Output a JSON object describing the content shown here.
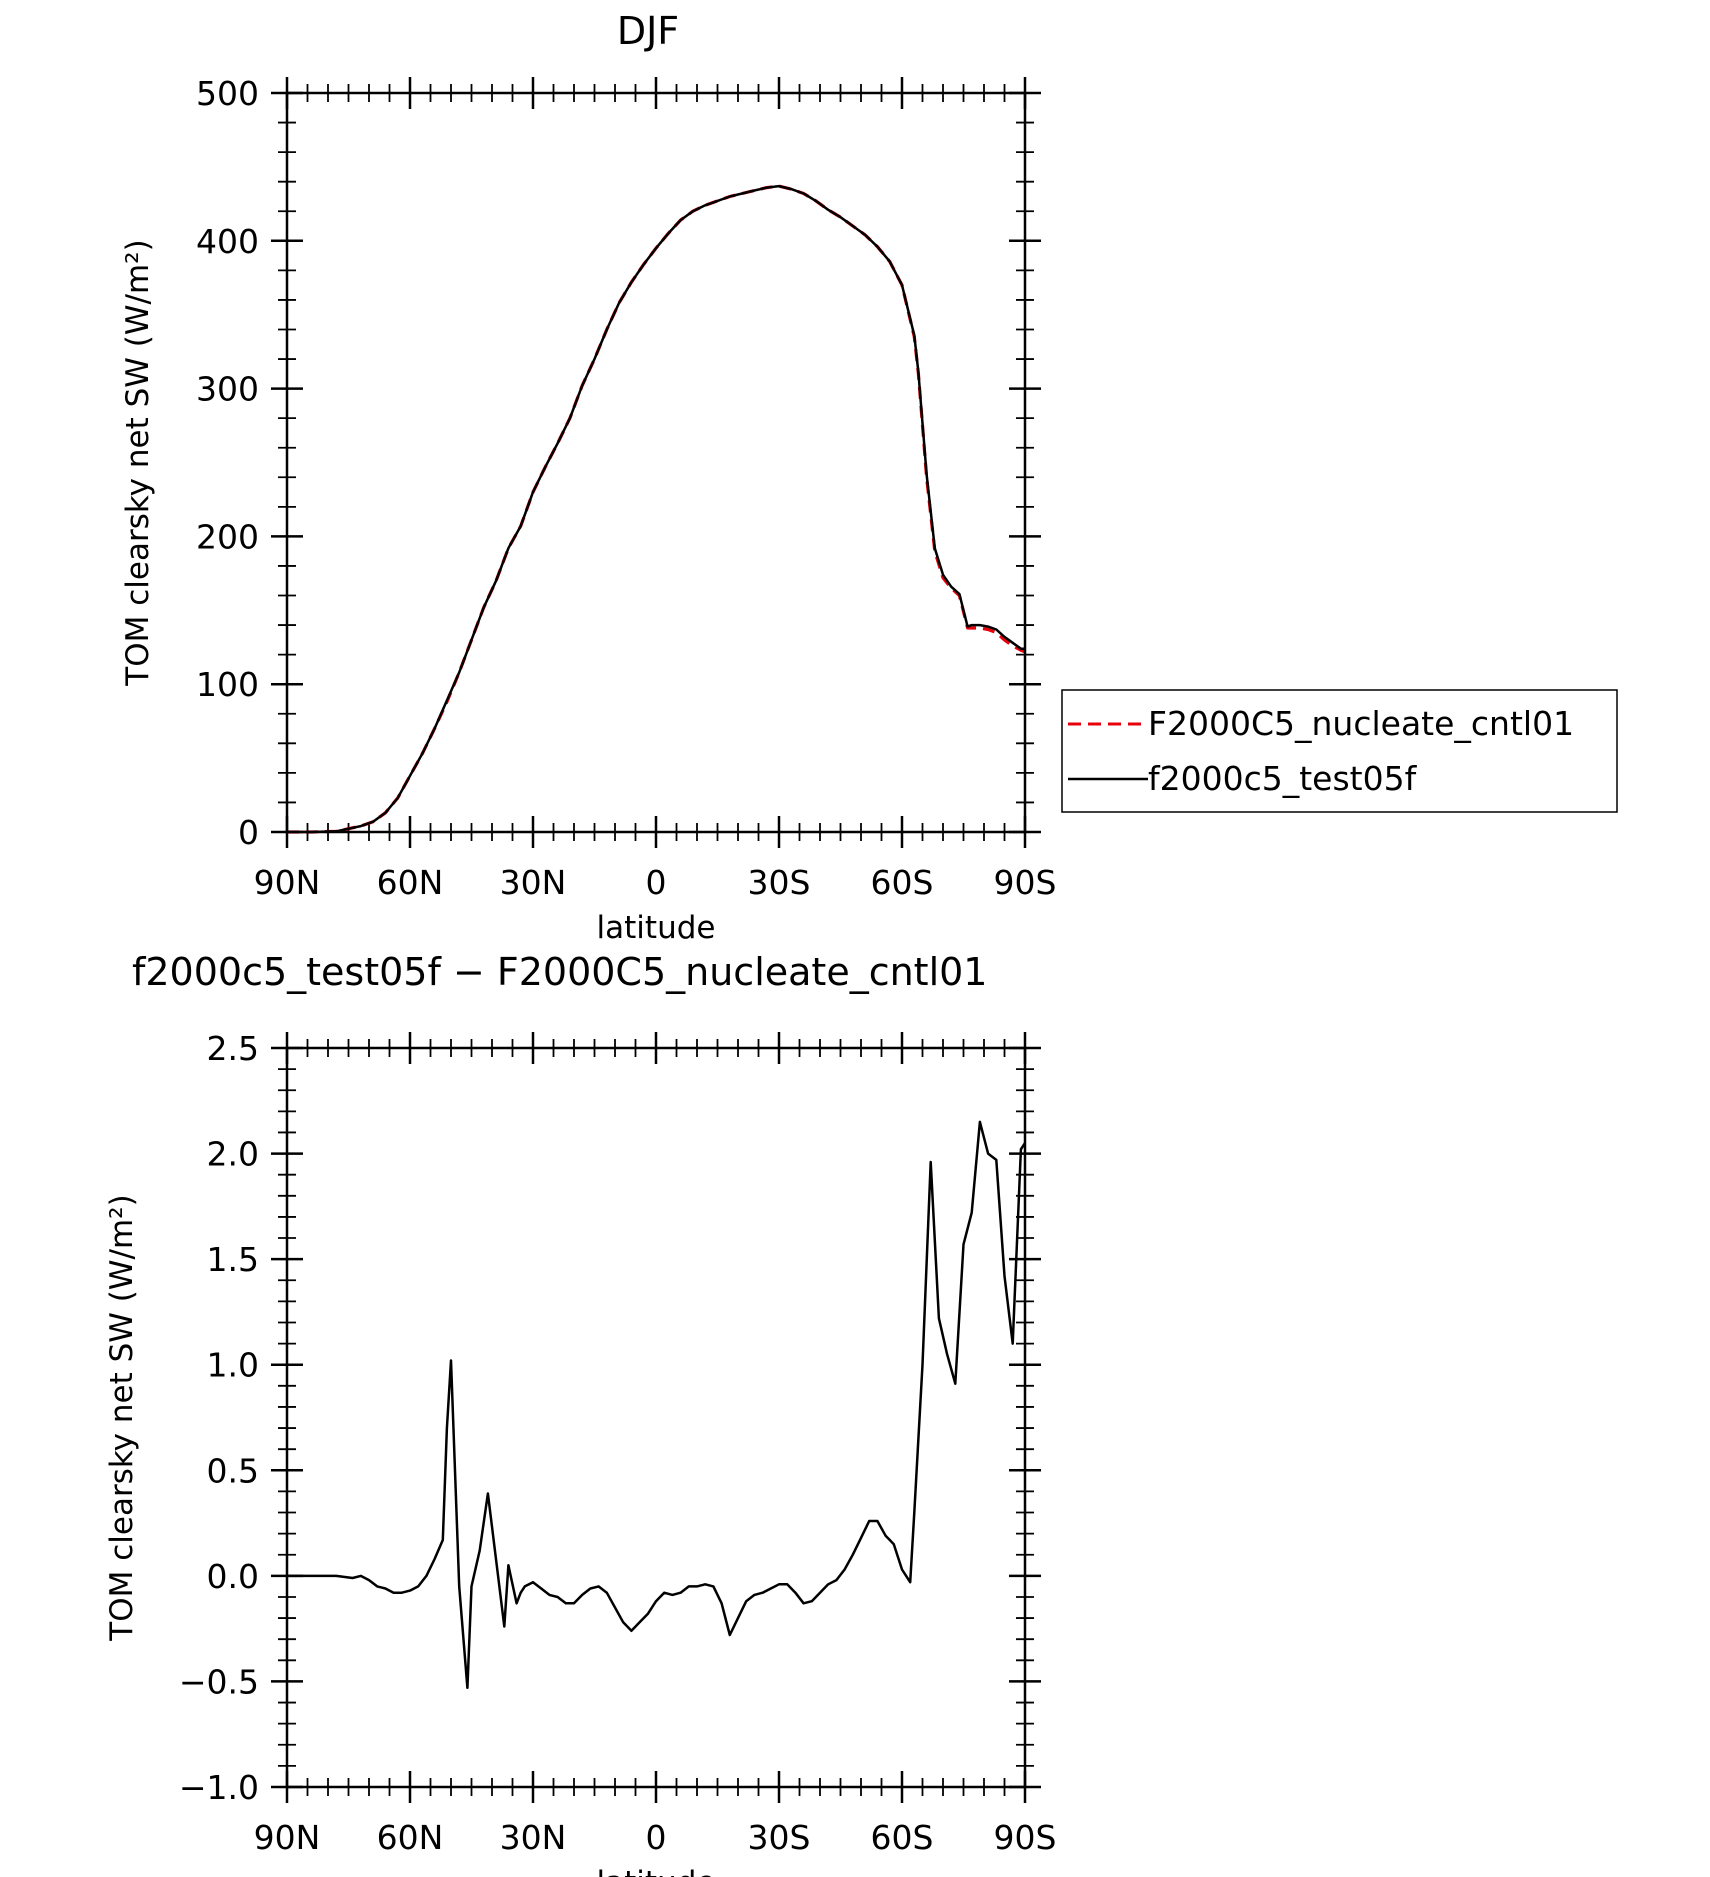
{
  "chart_data": [
    {
      "type": "line",
      "title": "DJF",
      "xlabel": "latitude",
      "ylabel": "TOM clearsky net SW (W/m²)",
      "xlim": [
        -90,
        90
      ],
      "ylim": [
        0,
        500
      ],
      "xticks": [
        -90,
        -60,
        -30,
        0,
        30,
        60,
        90
      ],
      "xtick_labels": [
        "90N",
        "60N",
        "30N",
        "0",
        "30S",
        "60S",
        "90S"
      ],
      "yticks": [
        0,
        100,
        200,
        300,
        400,
        500
      ],
      "ytick_labels": [
        "0",
        "100",
        "200",
        "300",
        "400",
        "500"
      ],
      "legend_position": "right",
      "series": [
        {
          "name": "F2000C5_nucleate_cntl01",
          "color": "#e8000b",
          "style": "dashed",
          "x": [
            -90,
            -84,
            -78,
            -72,
            -69,
            -66,
            -63,
            -60,
            -57,
            -54,
            -51,
            -48,
            -45,
            -42,
            -39,
            -36,
            -33,
            -30,
            -27,
            -24,
            -21,
            -18,
            -15,
            -12,
            -9,
            -6,
            -3,
            0,
            3,
            6,
            9,
            12,
            15,
            18,
            21,
            24,
            27,
            30,
            33,
            36,
            39,
            42,
            45,
            48,
            51,
            54,
            57,
            60,
            63,
            64,
            66,
            68,
            70,
            72,
            74,
            76,
            77,
            79,
            81,
            83,
            85,
            87,
            89,
            90
          ],
          "y": [
            0,
            0,
            0.5,
            4,
            7,
            13,
            23,
            38,
            53,
            70,
            88,
            108,
            130,
            152,
            170,
            192,
            207,
            230,
            247,
            263,
            280,
            302,
            320,
            340,
            358,
            372,
            384,
            395,
            405,
            414,
            420,
            424,
            427,
            430,
            432,
            434,
            436,
            437,
            435,
            432,
            427,
            421,
            416,
            410,
            404,
            396,
            386,
            370,
            335,
            310,
            240,
            190,
            172,
            165,
            160,
            138,
            138,
            138,
            137,
            135,
            130,
            126,
            123,
            122
          ]
        },
        {
          "name": "f2000c5_test05f",
          "color": "#000000",
          "style": "solid",
          "x": [
            -90,
            -84,
            -78,
            -72,
            -69,
            -66,
            -63,
            -60,
            -57,
            -54,
            -51,
            -48,
            -45,
            -42,
            -39,
            -36,
            -33,
            -30,
            -27,
            -24,
            -21,
            -18,
            -15,
            -12,
            -9,
            -6,
            -3,
            0,
            3,
            6,
            9,
            12,
            15,
            18,
            21,
            24,
            27,
            30,
            33,
            36,
            39,
            42,
            45,
            48,
            51,
            54,
            57,
            60,
            63,
            64,
            66,
            68,
            70,
            72,
            74,
            76,
            77,
            79,
            81,
            83,
            85,
            87,
            89,
            90
          ],
          "y": [
            0,
            0,
            0.5,
            4,
            7,
            13,
            23,
            38,
            53,
            70,
            89,
            108,
            130,
            152,
            170,
            192,
            207,
            230,
            247,
            263,
            280,
            302,
            320,
            340,
            358,
            372,
            384,
            395,
            405,
            414,
            420,
            424,
            427,
            430,
            432,
            434,
            436,
            437,
            435,
            432,
            427,
            421,
            416,
            410,
            404,
            396,
            386,
            370,
            336,
            311,
            242,
            192,
            174,
            166,
            161,
            139,
            140,
            140,
            139,
            137,
            132,
            128,
            124,
            124
          ]
        }
      ]
    },
    {
      "type": "line",
      "title": "f2000c5_test05f − F2000C5_nucleate_cntl01",
      "xlabel": "latitude",
      "ylabel": "TOM clearsky net SW (W/m²)",
      "xlim": [
        -90,
        90
      ],
      "ylim": [
        -1.0,
        2.5
      ],
      "xticks": [
        -90,
        -60,
        -30,
        0,
        30,
        60,
        90
      ],
      "xtick_labels": [
        "90N",
        "60N",
        "30N",
        "0",
        "30S",
        "60S",
        "90S"
      ],
      "yticks": [
        -1.0,
        -0.5,
        0.0,
        0.5,
        1.0,
        1.5,
        2.0,
        2.5
      ],
      "ytick_labels": [
        "−1.0",
        "−0.5",
        "0.0",
        "0.5",
        "1.0",
        "1.5",
        "2.0",
        "2.5"
      ],
      "series": [
        {
          "color": "#000000",
          "style": "solid",
          "x": [
            -90,
            -84,
            -78,
            -74,
            -72,
            -70,
            -68,
            -66,
            -64,
            -62,
            -60,
            -58,
            -56,
            -54,
            -52,
            -51,
            -50,
            -48,
            -46,
            -45,
            -43,
            -41,
            -37,
            -36,
            -34,
            -33,
            -32,
            -30,
            -28,
            -26,
            -24,
            -22,
            -20,
            -18,
            -16,
            -14,
            -12,
            -10,
            -8,
            -6,
            -4,
            -2,
            0,
            2,
            4,
            6,
            8,
            10,
            12,
            14,
            16,
            18,
            20,
            22,
            24,
            26,
            28,
            30,
            32,
            34,
            36,
            38,
            40,
            42,
            44,
            46,
            48,
            50,
            52,
            54,
            56,
            58,
            60,
            62,
            63,
            65,
            67,
            69,
            71,
            73,
            75,
            77,
            79,
            81,
            83,
            85,
            87,
            89,
            90
          ],
          "y": [
            0,
            0,
            0,
            -0.01,
            0,
            -0.02,
            -0.05,
            -0.06,
            -0.08,
            -0.08,
            -0.07,
            -0.05,
            0.0,
            0.08,
            0.17,
            0.7,
            1.02,
            -0.05,
            -0.53,
            -0.05,
            0.12,
            0.39,
            -0.24,
            0.05,
            -0.13,
            -0.08,
            -0.05,
            -0.03,
            -0.06,
            -0.09,
            -0.1,
            -0.13,
            -0.13,
            -0.09,
            -0.06,
            -0.05,
            -0.08,
            -0.15,
            -0.22,
            -0.26,
            -0.22,
            -0.18,
            -0.12,
            -0.08,
            -0.09,
            -0.08,
            -0.05,
            -0.05,
            -0.04,
            -0.05,
            -0.13,
            -0.28,
            -0.2,
            -0.12,
            -0.09,
            -0.08,
            -0.06,
            -0.04,
            -0.04,
            -0.08,
            -0.13,
            -0.12,
            -0.08,
            -0.04,
            -0.02,
            0.03,
            0.1,
            0.18,
            0.26,
            0.26,
            0.19,
            0.15,
            0.03,
            -0.03,
            0.3,
            1.0,
            1.96,
            1.22,
            1.05,
            0.91,
            1.57,
            1.72,
            2.15,
            2.0,
            1.97,
            1.42,
            1.1,
            2.02,
            2.05
          ]
        }
      ]
    }
  ]
}
